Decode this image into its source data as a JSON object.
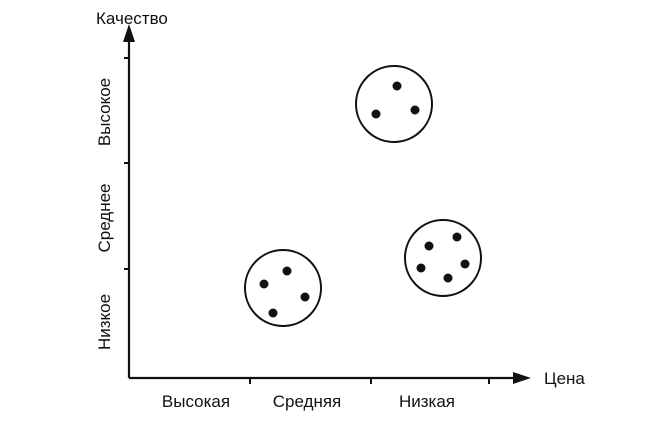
{
  "axes": {
    "y_title": "Качество",
    "x_title": "Цена",
    "y_categories": [
      "Низкое",
      "Среднее",
      "Высокое"
    ],
    "x_categories": [
      "Высокая",
      "Средняя",
      "Низкая"
    ]
  },
  "clusters": [
    {
      "id": "cluster-high-quality-low-price",
      "dots": 3
    },
    {
      "id": "cluster-mid-quality-low-price",
      "dots": 5
    },
    {
      "id": "cluster-low-quality-mid-price",
      "dots": 4
    }
  ],
  "colors": {
    "ink": "#111111",
    "background": "#ffffff"
  }
}
